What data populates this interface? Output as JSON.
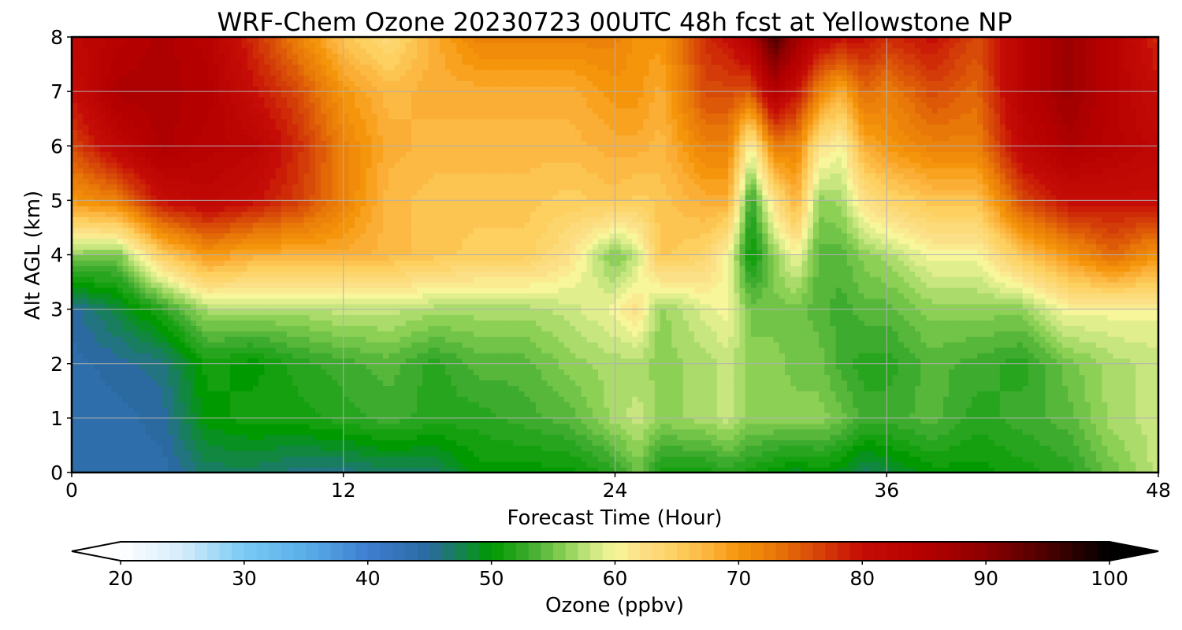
{
  "chart_data": {
    "type": "heatmap",
    "title": "WRF-Chem Ozone  20230723 00UTC 48h fcst at Yellowstone NP",
    "xlabel": "Forecast Time (Hour)",
    "ylabel": "Alt AGL (km)",
    "xlim": [
      0,
      48
    ],
    "ylim": [
      0,
      8
    ],
    "x_ticks": [
      "0",
      "12",
      "24",
      "36",
      "48"
    ],
    "y_ticks": [
      "0",
      "1",
      "2",
      "3",
      "4",
      "5",
      "6",
      "7",
      "8"
    ],
    "grid": true,
    "colorbar": {
      "label": "Ozone  (ppbv)",
      "min": 20,
      "max": 100,
      "step": 1,
      "extend": "both",
      "ticks": [
        "20",
        "30",
        "40",
        "50",
        "60",
        "70",
        "80",
        "90",
        "100"
      ]
    },
    "colormap": [
      [
        20,
        "#ffffff"
      ],
      [
        25,
        "#d4ecfa"
      ],
      [
        30,
        "#79caf4"
      ],
      [
        35,
        "#5aaee8"
      ],
      [
        40,
        "#3f7dd0"
      ],
      [
        45,
        "#2a6aa0"
      ],
      [
        50,
        "#009a00"
      ],
      [
        53,
        "#3cab2e"
      ],
      [
        56,
        "#8cd055"
      ],
      [
        58,
        "#c8e680"
      ],
      [
        60,
        "#f8f69a"
      ],
      [
        62,
        "#fce088"
      ],
      [
        65,
        "#fdd060"
      ],
      [
        68,
        "#fbae35"
      ],
      [
        70,
        "#f5950b"
      ],
      [
        73,
        "#e87808"
      ],
      [
        76,
        "#d84a08"
      ],
      [
        80,
        "#c50c06"
      ],
      [
        85,
        "#b50000"
      ],
      [
        90,
        "#8c0000"
      ],
      [
        95,
        "#4a0000"
      ],
      [
        100,
        "#000000"
      ]
    ],
    "columns": [
      {
        "hour": 0,
        "v": [
          44,
          44,
          44,
          45,
          56,
          70,
          76,
          80,
          82
        ]
      },
      {
        "hour": 2,
        "v": [
          44,
          44,
          45,
          48,
          55,
          72,
          82,
          86,
          84
        ]
      },
      {
        "hour": 4,
        "v": [
          44,
          45,
          46,
          52,
          65,
          80,
          86,
          86,
          86
        ]
      },
      {
        "hour": 6,
        "v": [
          47,
          50,
          51,
          57,
          70,
          82,
          84,
          85,
          84
        ]
      },
      {
        "hour": 8,
        "v": [
          47,
          51,
          50,
          57,
          68,
          80,
          83,
          80,
          78
        ]
      },
      {
        "hour": 10,
        "v": [
          46,
          51,
          52,
          57,
          68,
          77,
          78,
          76,
          72
        ]
      },
      {
        "hour": 12,
        "v": [
          46,
          52,
          53,
          58,
          68,
          72,
          72,
          70,
          66
        ]
      },
      {
        "hour": 14,
        "v": [
          47,
          53,
          54,
          58,
          67,
          67,
          68,
          67,
          63
        ]
      },
      {
        "hour": 16,
        "v": [
          47,
          52,
          52,
          57,
          66,
          66,
          67,
          68,
          68
        ]
      },
      {
        "hour": 18,
        "v": [
          50,
          52,
          54,
          57,
          65,
          66,
          67,
          68,
          72
        ]
      },
      {
        "hour": 20,
        "v": [
          50,
          53,
          54,
          57,
          65,
          66,
          67,
          68,
          72
        ]
      },
      {
        "hour": 22,
        "v": [
          50,
          54,
          56,
          58,
          62,
          65,
          67,
          68,
          72
        ]
      },
      {
        "hour": 24,
        "v": [
          52,
          57,
          57,
          60,
          55,
          66,
          68,
          70,
          72
        ]
      },
      {
        "hour": 25,
        "v": [
          55,
          58,
          57,
          62,
          58,
          65,
          68,
          70,
          70
        ]
      },
      {
        "hour": 26,
        "v": [
          51,
          56,
          56,
          56,
          66,
          66,
          67,
          68,
          70
        ]
      },
      {
        "hour": 28,
        "v": [
          51,
          57,
          57,
          59,
          64,
          68,
          72,
          76,
          78
        ]
      },
      {
        "hour": 29,
        "v": [
          52,
          58,
          58,
          60,
          60,
          68,
          72,
          76,
          80
        ]
      },
      {
        "hour": 30,
        "v": [
          51,
          56,
          56,
          55,
          50,
          52,
          60,
          75,
          85
        ]
      },
      {
        "hour": 31,
        "v": [
          50,
          56,
          56,
          55,
          56,
          62,
          72,
          85,
          95
        ]
      },
      {
        "hour": 32,
        "v": [
          49,
          56,
          55,
          55,
          60,
          68,
          72,
          80,
          88
        ]
      },
      {
        "hour": 33,
        "v": [
          50,
          56,
          55,
          54,
          54,
          56,
          62,
          72,
          82
        ]
      },
      {
        "hour": 34,
        "v": [
          49,
          55,
          53,
          53,
          54,
          57,
          60,
          68,
          80
        ]
      },
      {
        "hour": 35,
        "v": [
          47,
          53,
          52,
          54,
          56,
          62,
          68,
          74,
          80
        ]
      },
      {
        "hour": 36,
        "v": [
          48,
          53,
          52,
          54,
          57,
          64,
          70,
          72,
          78
        ]
      },
      {
        "hour": 38,
        "v": [
          50,
          54,
          54,
          56,
          60,
          66,
          72,
          76,
          80
        ]
      },
      {
        "hour": 40,
        "v": [
          50,
          52,
          53,
          56,
          60,
          66,
          72,
          74,
          76
        ]
      },
      {
        "hour": 42,
        "v": [
          51,
          53,
          52,
          56,
          66,
          76,
          82,
          84,
          84
        ]
      },
      {
        "hour": 44,
        "v": [
          52,
          54,
          55,
          60,
          70,
          80,
          86,
          88,
          88
        ]
      },
      {
        "hour": 46,
        "v": [
          55,
          57,
          57,
          60,
          74,
          80,
          84,
          84,
          84
        ]
      },
      {
        "hour": 48,
        "v": [
          58,
          58,
          58,
          60,
          70,
          80,
          82,
          80,
          78
        ]
      }
    ]
  }
}
